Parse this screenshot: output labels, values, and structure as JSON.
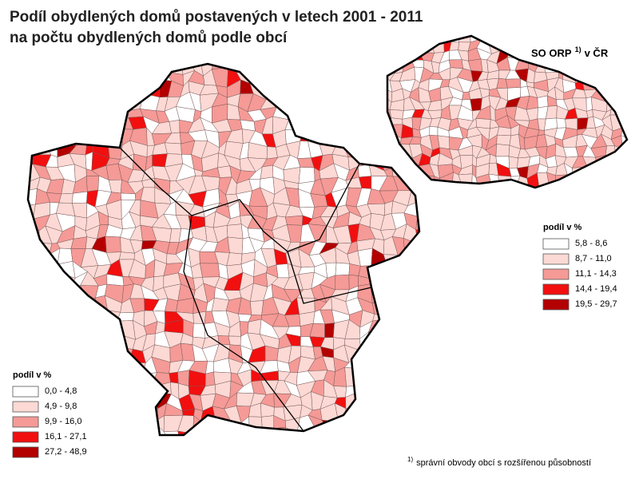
{
  "title": {
    "line1": "Podíl obydlených domů postavených v letech 2001 - 2011",
    "line2": "na počtu obydlených domů podle obcí"
  },
  "inset": {
    "label": "SO ORP",
    "label_sup": "1)",
    "label_tail": "v ČR",
    "legend": {
      "title": "podíl v %",
      "items": [
        {
          "label": "5,8 -   8,6",
          "color": "#ffffff"
        },
        {
          "label": "8,7 - 11,0",
          "color": "#fcd9d4"
        },
        {
          "label": "11,1 - 14,3",
          "color": "#f59a96"
        },
        {
          "label": "14,4 - 19,4",
          "color": "#f20f0f"
        },
        {
          "label": "19,5 - 29,7",
          "color": "#b30000"
        }
      ]
    }
  },
  "legend": {
    "title": "podíl v %",
    "items": [
      {
        "label": "0,0 -   4,8",
        "color": "#ffffff"
      },
      {
        "label": "4,9 -   9,8",
        "color": "#fcd9d4"
      },
      {
        "label": "9,9 - 16,0",
        "color": "#f59a96"
      },
      {
        "label": "16,1 - 27,1",
        "color": "#f20f0f"
      },
      {
        "label": "27,2 - 48,9",
        "color": "#b30000"
      }
    ]
  },
  "footnote": {
    "mark": "1)",
    "text": "správní obvody obcí s rozšířenou působností"
  }
}
